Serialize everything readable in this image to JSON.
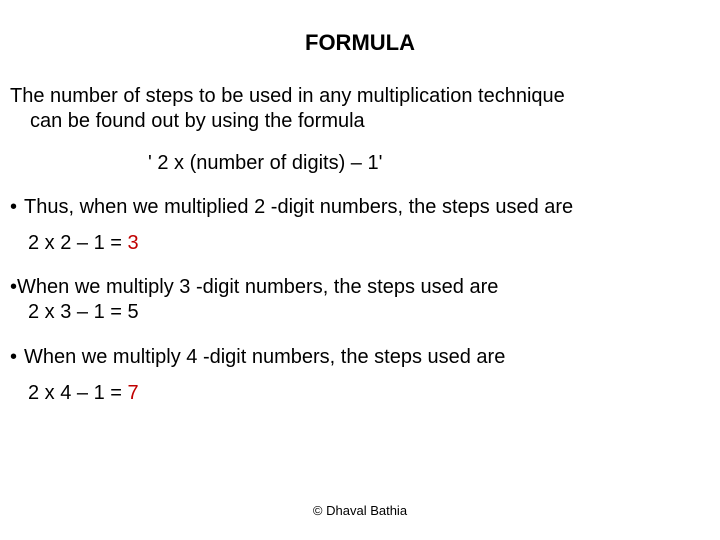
{
  "title": "FORMULA",
  "intro_line1": "The number of steps to be used in any multiplication technique",
  "intro_line2": "can be found out by using the formula",
  "formula": "' 2 x (number of digits) – 1'",
  "bullet1": "Thus, when we multiplied 2 -digit numbers, the steps used are",
  "calc1_expr": "2 x 2 – 1 = ",
  "calc1_result": "3",
  "bullet2": "When we multiply 3 -digit numbers, the steps used are",
  "calc2_expr": "2 x 3 – 1 = ",
  "calc2_result": "5",
  "bullet3": "When we multiply 4 -digit numbers, the steps used are",
  "calc3_expr": "2 x 4 – 1 = ",
  "calc3_result": "7",
  "copyright": "© Dhaval Bathia",
  "colors": {
    "text": "#000000",
    "result": "#c00000",
    "background": "#ffffff"
  },
  "font_sizes": {
    "title": 22,
    "body": 20,
    "copyright": 13
  }
}
